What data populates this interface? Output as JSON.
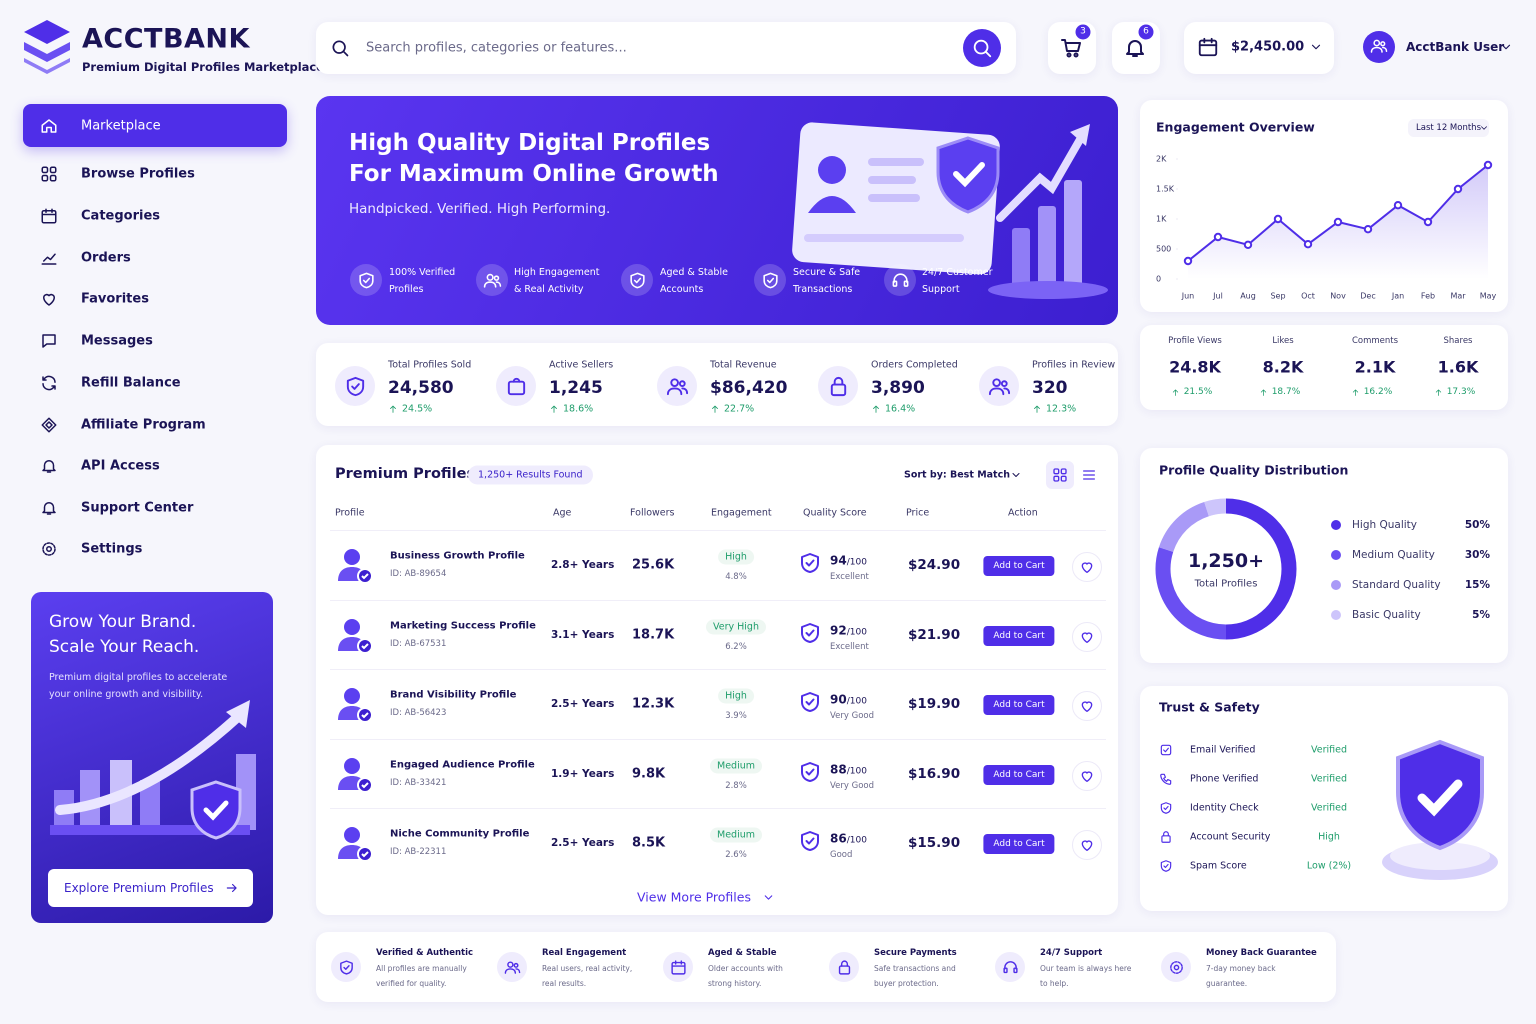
{
  "brand": {
    "name": "ACCTBANK",
    "tagline": "Premium Digital Profiles Marketplace"
  },
  "header": {
    "search_placeholder": "Search profiles, categories or features...",
    "cart_count": 3,
    "notification_count": 6,
    "balance": "$2,450.00",
    "user": "AcctBank User"
  },
  "sidebar": {
    "nav": [
      "Marketplace",
      "Browse Profiles",
      "Categories",
      "Orders",
      "Favorites",
      "Messages",
      "Refill Balance",
      "Affiliate Program",
      "API Access",
      "Support Center",
      "Settings"
    ]
  },
  "promo": {
    "title_lines": [
      "Grow Your Brand.",
      "Scale Your Reach."
    ],
    "text": "Premium digital profiles to accelerate your online growth and visibility.",
    "button": "Explore Premium Profiles"
  },
  "hero": {
    "title_lines": [
      "High Quality Digital Profiles",
      "For Maximum Online Growth"
    ],
    "subtitle": "Handpicked. Verified. High Performing.",
    "features": [
      "100% Verified Profiles",
      "High Engagement & Real Activity",
      "Aged & Stable Accounts",
      "Secure & Safe Transactions",
      "24/7 Customer Support"
    ]
  },
  "stats": [
    {
      "label": "Total Profiles Sold",
      "value": "24,580",
      "change": "24.5%"
    },
    {
      "label": "Active Sellers",
      "value": "1,245",
      "change": "18.6%"
    },
    {
      "label": "Total Revenue",
      "value": "$86,420",
      "change": "22.7%"
    },
    {
      "label": "Orders Completed",
      "value": "3,890",
      "change": "16.4%"
    },
    {
      "label": "Profiles in Review",
      "value": "320",
      "change": "12.3%"
    }
  ],
  "table": {
    "title": "Premium Profiles",
    "results": "1,250+ Results Found",
    "sort": "Sort by: Best Match",
    "columns": [
      "Profile",
      "Age",
      "Followers",
      "Engagement",
      "Quality Score",
      "Price",
      "Action"
    ],
    "score_scale": "/100",
    "add_to_cart": "Add to Cart",
    "view_more": "View More Profiles",
    "rows": [
      {
        "name": "Business Growth Profile",
        "id": "ID: AB-89654",
        "age": "2.8+ Years",
        "followers": "25.6K",
        "engagement": "High",
        "engagement_rate": "4.8%",
        "score": 94,
        "rating": "Excellent",
        "price": "$24.90"
      },
      {
        "name": "Marketing Success Profile",
        "id": "ID: AB-67531",
        "age": "3.1+ Years",
        "followers": "18.7K",
        "engagement": "Very High",
        "engagement_rate": "6.2%",
        "score": 92,
        "rating": "Excellent",
        "price": "$21.90"
      },
      {
        "name": "Brand Visibility Profile",
        "id": "ID: AB-56423",
        "age": "2.5+ Years",
        "followers": "12.3K",
        "engagement": "High",
        "engagement_rate": "3.9%",
        "score": 90,
        "rating": "Very Good",
        "price": "$19.90"
      },
      {
        "name": "Engaged Audience Profile",
        "id": "ID: AB-33421",
        "age": "1.9+ Years",
        "followers": "9.8K",
        "engagement": "Medium",
        "engagement_rate": "2.8%",
        "score": 88,
        "rating": "Very Good",
        "price": "$16.90"
      },
      {
        "name": "Niche Community Profile",
        "id": "ID: AB-22311",
        "age": "2.5+ Years",
        "followers": "8.5K",
        "engagement": "Medium",
        "engagement_rate": "2.6%",
        "score": 86,
        "rating": "Good",
        "price": "$15.90"
      }
    ]
  },
  "engagement": {
    "period": "Last 12 Months",
    "metrics": [
      {
        "label": "Profile Views",
        "value": "24.8K",
        "change": "21.5%"
      },
      {
        "label": "Likes",
        "value": "8.2K",
        "change": "18.7%"
      },
      {
        "label": "Comments",
        "value": "2.1K",
        "change": "16.2%"
      },
      {
        "label": "Shares",
        "value": "1.6K",
        "change": "17.3%"
      }
    ]
  },
  "chart_data": [
    {
      "type": "line",
      "title": "Engagement Overview",
      "categories": [
        "Jun",
        "Jul",
        "Aug",
        "Sep",
        "Oct",
        "Nov",
        "Dec",
        "Jan",
        "Feb",
        "Mar",
        "May"
      ],
      "values": [
        300,
        700,
        570,
        1000,
        580,
        950,
        830,
        1230,
        950,
        1500,
        1900
      ],
      "color": "#4f2ee8",
      "ylim": [
        0,
        2000
      ],
      "yticks": [
        0,
        500,
        {
          "value": 1000,
          "label": "1K"
        },
        {
          "value": 1500,
          "label": "1.5K"
        },
        {
          "value": 2000,
          "label": "2K"
        }
      ],
      "grid": false
    },
    {
      "type": "pie",
      "title": "Profile Quality Distribution",
      "center_value": "1,250+",
      "center_label": "Total Profiles",
      "categories": [
        "High Quality",
        "Medium Quality",
        "Standard Quality",
        "Basic Quality"
      ],
      "values": [
        50,
        30,
        15,
        5
      ],
      "value_labels": [
        "50%",
        "30%",
        "15%",
        "5%"
      ],
      "colors": [
        "#4f2ee8",
        "#6a4ff2",
        "#a99af7",
        "#cdc5fb"
      ]
    }
  ],
  "trust": {
    "title": "Trust & Safety",
    "items": [
      {
        "label": "Email Verified",
        "status": "Verified"
      },
      {
        "label": "Phone Verified",
        "status": "Verified"
      },
      {
        "label": "Identity Check",
        "status": "Verified"
      },
      {
        "label": "Account Security",
        "status": "High"
      },
      {
        "label": "Spam Score",
        "status": "Low (2%)"
      }
    ]
  },
  "features": [
    {
      "title": "Verified & Authentic",
      "text": "All profiles are manually verified for quality."
    },
    {
      "title": "Real Engagement",
      "text": "Real users, real activity, real results."
    },
    {
      "title": "Aged & Stable",
      "text": "Older accounts with strong history."
    },
    {
      "title": "Secure Payments",
      "text": "Safe transactions and buyer protection."
    },
    {
      "title": "24/7 Support",
      "text": "Our team is always here to help."
    },
    {
      "title": "Money Back Guarantee",
      "text": "7-day money back guarantee."
    }
  ]
}
